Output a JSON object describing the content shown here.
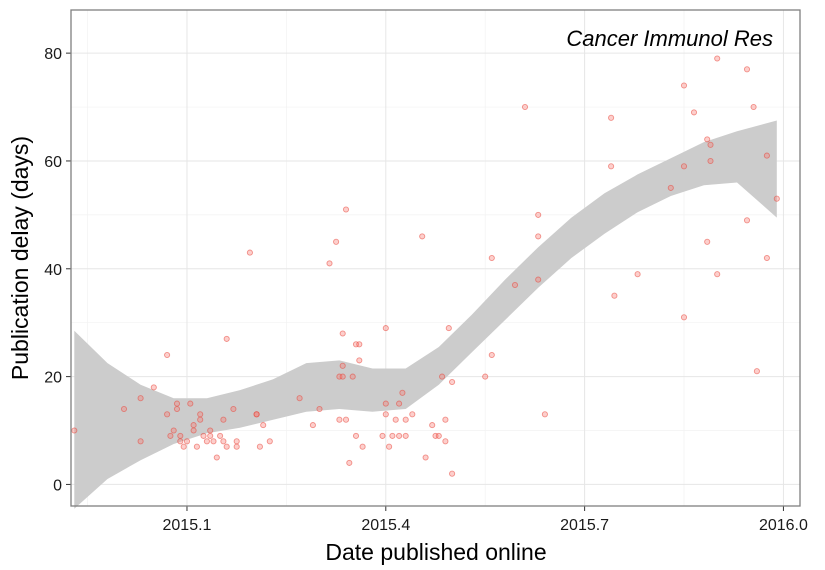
{
  "chart_data": {
    "type": "scatter",
    "title": "",
    "annotation": "Cancer Immunol Res",
    "xlabel": "Date published online",
    "ylabel": "Publication delay (days)",
    "xlim": [
      2014.925,
      2016.025
    ],
    "ylim": [
      -4,
      88
    ],
    "xticks": [
      2015.1,
      2015.4,
      2015.7,
      2016.0
    ],
    "xtick_labels": [
      "2015.1",
      "2015.4",
      "2015.7",
      "2016.0"
    ],
    "yticks": [
      0,
      20,
      40,
      60,
      80
    ],
    "ytick_labels": [
      "0",
      "20",
      "40",
      "60",
      "80"
    ],
    "grid": true,
    "point_color": "#F8766D",
    "band_color": "#CCCCCC",
    "points": [
      [
        2014.93,
        10
      ],
      [
        2015.005,
        14
      ],
      [
        2015.03,
        16
      ],
      [
        2015.03,
        8
      ],
      [
        2015.05,
        18
      ],
      [
        2015.07,
        24
      ],
      [
        2015.07,
        13
      ],
      [
        2015.075,
        9
      ],
      [
        2015.08,
        10
      ],
      [
        2015.085,
        14
      ],
      [
        2015.085,
        15
      ],
      [
        2015.09,
        8
      ],
      [
        2015.09,
        9
      ],
      [
        2015.095,
        7
      ],
      [
        2015.1,
        8
      ],
      [
        2015.105,
        15
      ],
      [
        2015.11,
        10
      ],
      [
        2015.11,
        11
      ],
      [
        2015.115,
        7
      ],
      [
        2015.12,
        13
      ],
      [
        2015.12,
        12
      ],
      [
        2015.125,
        9
      ],
      [
        2015.13,
        8
      ],
      [
        2015.135,
        10
      ],
      [
        2015.135,
        9
      ],
      [
        2015.14,
        8
      ],
      [
        2015.145,
        5
      ],
      [
        2015.15,
        9
      ],
      [
        2015.155,
        8
      ],
      [
        2015.155,
        12
      ],
      [
        2015.16,
        7
      ],
      [
        2015.16,
        27
      ],
      [
        2015.17,
        14
      ],
      [
        2015.175,
        8
      ],
      [
        2015.175,
        7
      ],
      [
        2015.195,
        43
      ],
      [
        2015.205,
        13
      ],
      [
        2015.205,
        13
      ],
      [
        2015.21,
        7
      ],
      [
        2015.215,
        11
      ],
      [
        2015.225,
        8
      ],
      [
        2015.27,
        16
      ],
      [
        2015.29,
        11
      ],
      [
        2015.3,
        14
      ],
      [
        2015.315,
        41
      ],
      [
        2015.325,
        45
      ],
      [
        2015.33,
        12
      ],
      [
        2015.33,
        20
      ],
      [
        2015.335,
        20
      ],
      [
        2015.335,
        28
      ],
      [
        2015.335,
        22
      ],
      [
        2015.34,
        51
      ],
      [
        2015.34,
        12
      ],
      [
        2015.345,
        4
      ],
      [
        2015.35,
        20
      ],
      [
        2015.355,
        9
      ],
      [
        2015.355,
        26
      ],
      [
        2015.36,
        26
      ],
      [
        2015.36,
        23
      ],
      [
        2015.365,
        7
      ],
      [
        2015.395,
        9
      ],
      [
        2015.4,
        29
      ],
      [
        2015.4,
        15
      ],
      [
        2015.4,
        13
      ],
      [
        2015.405,
        7
      ],
      [
        2015.41,
        9
      ],
      [
        2015.415,
        12
      ],
      [
        2015.42,
        9
      ],
      [
        2015.42,
        15
      ],
      [
        2015.425,
        17
      ],
      [
        2015.43,
        12
      ],
      [
        2015.43,
        9
      ],
      [
        2015.44,
        13
      ],
      [
        2015.455,
        46
      ],
      [
        2015.46,
        5
      ],
      [
        2015.47,
        11
      ],
      [
        2015.475,
        9
      ],
      [
        2015.48,
        9
      ],
      [
        2015.485,
        20
      ],
      [
        2015.49,
        12
      ],
      [
        2015.49,
        8
      ],
      [
        2015.495,
        29
      ],
      [
        2015.5,
        19
      ],
      [
        2015.5,
        2
      ],
      [
        2015.55,
        20
      ],
      [
        2015.56,
        24
      ],
      [
        2015.56,
        42
      ],
      [
        2015.595,
        37
      ],
      [
        2015.61,
        70
      ],
      [
        2015.63,
        46
      ],
      [
        2015.63,
        50
      ],
      [
        2015.63,
        38
      ],
      [
        2015.64,
        13
      ],
      [
        2015.74,
        68
      ],
      [
        2015.74,
        59
      ],
      [
        2015.745,
        35
      ],
      [
        2015.78,
        39
      ],
      [
        2015.83,
        55
      ],
      [
        2015.85,
        74
      ],
      [
        2015.85,
        59
      ],
      [
        2015.85,
        31
      ],
      [
        2015.865,
        69
      ],
      [
        2015.885,
        64
      ],
      [
        2015.885,
        45
      ],
      [
        2015.89,
        60
      ],
      [
        2015.89,
        63
      ],
      [
        2015.9,
        79
      ],
      [
        2015.9,
        39
      ],
      [
        2015.945,
        77
      ],
      [
        2015.945,
        49
      ],
      [
        2015.955,
        70
      ],
      [
        2015.96,
        21
      ],
      [
        2015.975,
        61
      ],
      [
        2015.975,
        42
      ],
      [
        2015.99,
        53
      ]
    ],
    "smooth": {
      "x": [
        2014.93,
        2014.98,
        2015.03,
        2015.08,
        2015.13,
        2015.18,
        2015.23,
        2015.28,
        2015.33,
        2015.38,
        2015.43,
        2015.48,
        2015.53,
        2015.58,
        2015.63,
        2015.68,
        2015.73,
        2015.78,
        2015.83,
        2015.88,
        2015.93,
        2015.99
      ],
      "upper": [
        28.5,
        22.5,
        18.5,
        16,
        16,
        17.5,
        19.5,
        22.5,
        23,
        21.5,
        21.5,
        25.5,
        31.5,
        38,
        44,
        49.5,
        54,
        57.5,
        60.5,
        63.5,
        65.5,
        67.5
      ],
      "lower": [
        -4.5,
        1,
        4.5,
        7.5,
        9.5,
        10.5,
        12,
        13.5,
        14,
        13.5,
        14,
        18.5,
        24.5,
        30.5,
        36.5,
        42,
        46.5,
        50.5,
        53.5,
        55.5,
        56,
        49.5
      ]
    }
  }
}
